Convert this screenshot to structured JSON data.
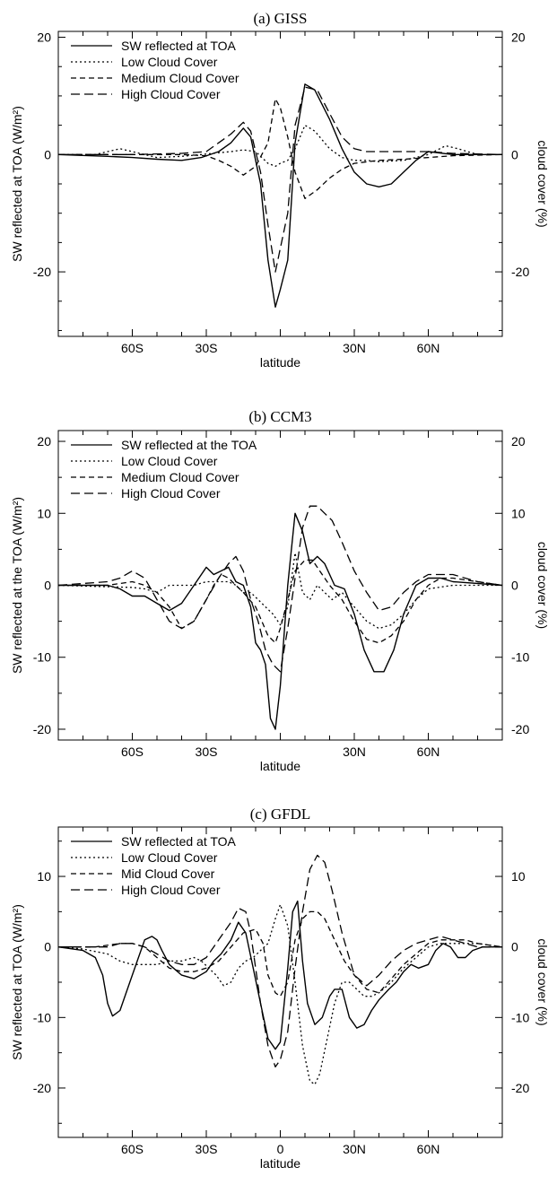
{
  "chart_data": [
    {
      "type": "line",
      "title": "(a) GISS",
      "xlabel": "latitude",
      "ylabel": "SW reflected at TOA (W/m²)",
      "y2label": "cloud cover (%)",
      "x_ticks": [
        -60,
        -30,
        0,
        30,
        60
      ],
      "x_tick_labels": [
        "60S",
        "30S",
        "",
        "30N",
        "60N"
      ],
      "y_ticks": [
        20,
        0,
        -20
      ],
      "y_tick_labels": [
        "20",
        "0",
        "-20"
      ],
      "y2_tick_labels": [
        "20",
        "0",
        "-20"
      ],
      "xlim": [
        -90,
        90
      ],
      "ylim": [
        -31,
        21
      ],
      "legend_position": "top-left",
      "series": [
        {
          "name": "SW reflected at TOA",
          "style": "solid",
          "x": [
            -90,
            -70,
            -60,
            -50,
            -40,
            -32,
            -25,
            -20,
            -15,
            -12,
            -8,
            -5,
            -2,
            0,
            3,
            6,
            10,
            14,
            20,
            25,
            30,
            35,
            40,
            45,
            50,
            55,
            60,
            70,
            90
          ],
          "y": [
            0,
            -0.3,
            -0.5,
            -0.8,
            -1,
            -0.5,
            0.5,
            2,
            4.5,
            3,
            -5,
            -18,
            -26,
            -23,
            -18,
            2,
            12,
            11,
            6,
            1,
            -3,
            -5,
            -5.5,
            -5,
            -3,
            -1,
            0.5,
            0,
            0
          ]
        },
        {
          "name": "Low Cloud Cover",
          "style": "dotted",
          "x": [
            -90,
            -75,
            -70,
            -65,
            -60,
            -50,
            -40,
            -32,
            -25,
            -20,
            -15,
            -10,
            -5,
            -2,
            0,
            3,
            6,
            10,
            14,
            20,
            25,
            30,
            35,
            40,
            50,
            60,
            67,
            72,
            80,
            90
          ],
          "y": [
            0,
            0,
            0.5,
            1,
            0.5,
            -0.5,
            -0.3,
            0,
            0.3,
            0.5,
            0.8,
            0.5,
            -1.5,
            -2,
            -1.5,
            -1,
            1,
            5,
            4,
            1,
            -0.5,
            -1,
            -1,
            -1.2,
            -1,
            0,
            1.5,
            1,
            0,
            0
          ]
        },
        {
          "name": "Medium Cloud Cover",
          "style": "dashed",
          "x": [
            -90,
            -60,
            -40,
            -30,
            -25,
            -20,
            -15,
            -10,
            -5,
            -2,
            0,
            3,
            6,
            10,
            15,
            20,
            25,
            30,
            40,
            50,
            60,
            70,
            90
          ],
          "y": [
            0,
            0,
            0,
            -0.2,
            -1,
            -2,
            -3.5,
            -2,
            2,
            9.5,
            8,
            3,
            -3,
            -7.5,
            -6,
            -4,
            -2.5,
            -1.5,
            -1,
            -0.8,
            -0.5,
            -0.2,
            0
          ]
        },
        {
          "name": "High Cloud Cover",
          "style": "longdash",
          "x": [
            -90,
            -60,
            -40,
            -30,
            -25,
            -20,
            -15,
            -12,
            -8,
            -5,
            -2,
            0,
            3,
            6,
            10,
            15,
            20,
            25,
            30,
            35,
            40,
            50,
            60,
            70,
            90
          ],
          "y": [
            0,
            0,
            0.2,
            0.5,
            2,
            3.5,
            5.5,
            4,
            -3,
            -12,
            -20,
            -16,
            -10,
            5,
            11.5,
            11,
            7,
            3,
            1,
            0.5,
            0.5,
            0.5,
            0.5,
            0.2,
            0
          ]
        }
      ]
    },
    {
      "type": "line",
      "title": "(b) CCM3",
      "xlabel": "latitude",
      "ylabel": "SW reflected at the TOA (W/m²)",
      "y2label": "cloud cover (%)",
      "x_ticks": [
        -60,
        -30,
        0,
        30,
        60
      ],
      "x_tick_labels": [
        "60S",
        "30S",
        "",
        "30N",
        "60N"
      ],
      "y_ticks": [
        20,
        10,
        0,
        -10,
        -20
      ],
      "y_tick_labels": [
        "20",
        "10",
        "0",
        "-10",
        "-20"
      ],
      "y2_tick_labels": [
        "20",
        "10",
        "0",
        "-10",
        "-20"
      ],
      "xlim": [
        -90,
        90
      ],
      "ylim": [
        -21.5,
        21.5
      ],
      "legend_position": "top-left",
      "series": [
        {
          "name": "SW reflected at the TOA",
          "style": "solid",
          "x": [
            -90,
            -70,
            -65,
            -60,
            -55,
            -50,
            -45,
            -40,
            -35,
            -30,
            -27,
            -24,
            -21,
            -18,
            -15,
            -12,
            -10,
            -8,
            -6,
            -4,
            -2,
            0,
            3,
            6,
            9,
            12,
            15,
            18,
            22,
            26,
            30,
            34,
            38,
            42,
            46,
            50,
            55,
            60,
            65,
            70,
            90
          ],
          "y": [
            0,
            0,
            -0.5,
            -1.5,
            -1.5,
            -2.5,
            -3.5,
            -2.5,
            0,
            2.5,
            1.5,
            2,
            2.5,
            0.5,
            0,
            -3,
            -8,
            -9,
            -11,
            -18.5,
            -20,
            -14,
            0,
            10,
            7.5,
            3,
            4,
            3,
            0,
            -0.5,
            -4,
            -9,
            -12,
            -12,
            -9,
            -4,
            0,
            1,
            1,
            0.5,
            0
          ]
        },
        {
          "name": "Low Cloud Cover",
          "style": "dotted",
          "x": [
            -90,
            -60,
            -55,
            -50,
            -45,
            -40,
            -35,
            -30,
            -27,
            -24,
            -21,
            -18,
            -15,
            -12,
            -9,
            -6,
            -3,
            0,
            3,
            6,
            9,
            12,
            15,
            18,
            21,
            25,
            30,
            35,
            40,
            45,
            50,
            55,
            60,
            70,
            80,
            90
          ],
          "y": [
            0,
            -0.3,
            -0.5,
            -1,
            0,
            0,
            0,
            0.5,
            0.5,
            0.5,
            0.5,
            0,
            -1,
            -1,
            -2,
            -3,
            -4,
            -5.5,
            -3,
            4.5,
            -1,
            -2,
            0,
            -1,
            -2,
            -1,
            -3,
            -5,
            -6,
            -5.5,
            -4,
            -2,
            -0.5,
            0,
            0,
            0
          ]
        },
        {
          "name": "Medium Cloud Cover",
          "style": "dashed",
          "x": [
            -90,
            -70,
            -60,
            -55,
            -50,
            -45,
            -40,
            -35,
            -30,
            -27,
            -24,
            -21,
            -18,
            -15,
            -10,
            -5,
            -2,
            0,
            3,
            6,
            10,
            13,
            16,
            20,
            25,
            30,
            35,
            40,
            45,
            50,
            55,
            60,
            65,
            70,
            80,
            90
          ],
          "y": [
            0,
            0,
            0.5,
            0,
            -1,
            -3,
            -6,
            -5,
            -2,
            0,
            1.5,
            1,
            0,
            -1,
            -3,
            -7,
            -8,
            -6,
            -2,
            2,
            3.5,
            3.5,
            2,
            0,
            -2,
            -5,
            -7.5,
            -8,
            -7,
            -5,
            -2,
            0,
            1,
            1,
            0.5,
            0
          ]
        },
        {
          "name": "High Cloud Cover",
          "style": "longdash",
          "x": [
            -90,
            -70,
            -65,
            -60,
            -55,
            -50,
            -45,
            -40,
            -35,
            -30,
            -25,
            -21,
            -18,
            -15,
            -12,
            -9,
            -6,
            -3,
            0,
            3,
            6,
            9,
            12,
            15,
            18,
            21,
            25,
            30,
            35,
            40,
            45,
            50,
            55,
            60,
            65,
            70,
            80,
            90
          ],
          "y": [
            0,
            0.5,
            1,
            2,
            1,
            -2,
            -5,
            -6,
            -5,
            -2,
            1,
            3,
            4,
            2,
            -2,
            -5,
            -9,
            -11,
            -12,
            -6,
            1,
            8,
            11,
            11,
            10,
            9,
            6,
            2,
            -1,
            -3.5,
            -3,
            -1,
            0.5,
            1.5,
            1.5,
            1.5,
            0.5,
            0
          ]
        }
      ]
    },
    {
      "type": "line",
      "title": "(c) GFDL",
      "xlabel": "latitude",
      "ylabel": "SW reflected at TOA (W/m²)",
      "y2label": "cloud cover (%)",
      "x_ticks": [
        -60,
        -30,
        0,
        30,
        60
      ],
      "x_tick_labels": [
        "60S",
        "30S",
        "0",
        "30N",
        "60N"
      ],
      "y_ticks": [
        10,
        0,
        -10,
        -20
      ],
      "y_tick_labels": [
        "10",
        "0",
        "-10",
        "-20"
      ],
      "y2_tick_labels": [
        "10",
        "0",
        "-10",
        "-20"
      ],
      "xlim": [
        -90,
        90
      ],
      "ylim": [
        -27,
        17
      ],
      "legend_position": "top-left",
      "series": [
        {
          "name": "SW reflected at TOA",
          "style": "solid",
          "x": [
            -90,
            -80,
            -75,
            -72,
            -70,
            -68,
            -65,
            -62,
            -58,
            -55,
            -52,
            -50,
            -48,
            -45,
            -40,
            -35,
            -30,
            -27,
            -24,
            -20,
            -17,
            -14,
            -11,
            -8,
            -5,
            -2,
            0,
            3,
            5,
            7,
            9,
            11,
            14,
            17,
            20,
            22,
            25,
            28,
            31,
            34,
            37,
            40,
            44,
            47,
            50,
            53,
            56,
            60,
            63,
            66,
            69,
            72,
            75,
            78,
            82,
            90
          ],
          "y": [
            0,
            -0.5,
            -1.5,
            -4,
            -8,
            -9.8,
            -9,
            -6,
            -2,
            1,
            1.5,
            1,
            -0.5,
            -2.5,
            -4,
            -4.5,
            -3.5,
            -2,
            -1,
            1,
            3.5,
            2,
            -3,
            -8,
            -13,
            -14.5,
            -13.5,
            -3,
            5,
            6.5,
            -2,
            -8,
            -11,
            -10,
            -7,
            -6,
            -6,
            -10,
            -11.5,
            -11,
            -9,
            -7.5,
            -6,
            -5,
            -3.5,
            -2.5,
            -3,
            -2.5,
            -0.5,
            0.5,
            0,
            -1.5,
            -1.5,
            -0.5,
            0,
            0
          ]
        },
        {
          "name": "Low Cloud Cover",
          "style": "dotted",
          "x": [
            -90,
            -80,
            -70,
            -65,
            -60,
            -55,
            -50,
            -45,
            -40,
            -35,
            -32,
            -29,
            -26,
            -23,
            -20,
            -17,
            -14,
            -11,
            -8,
            -5,
            -2,
            0,
            3,
            6,
            9,
            12,
            14,
            16,
            19,
            22,
            25,
            28,
            31,
            34,
            37,
            40,
            45,
            50,
            55,
            60,
            65,
            70,
            80,
            90
          ],
          "y": [
            0,
            -0.3,
            -1,
            -2,
            -2.5,
            -2.5,
            -2.5,
            -2,
            -2,
            -1.5,
            -2,
            -3,
            -4,
            -5.5,
            -5,
            -3,
            -2,
            -1.5,
            -0.5,
            0.5,
            4,
            6,
            3,
            -5,
            -14,
            -19,
            -19.5,
            -18,
            -13,
            -8,
            -5,
            -5,
            -6,
            -7,
            -7,
            -6.5,
            -5,
            -3,
            -1.5,
            0,
            0.5,
            0.5,
            0.5,
            0
          ]
        },
        {
          "name": "Mid Cloud Cover",
          "style": "dashed",
          "x": [
            -90,
            -75,
            -65,
            -60,
            -55,
            -50,
            -45,
            -40,
            -35,
            -30,
            -25,
            -20,
            -15,
            -10,
            -7,
            -5,
            -2,
            0,
            3,
            6,
            9,
            12,
            15,
            18,
            22,
            26,
            30,
            35,
            40,
            45,
            50,
            55,
            60,
            65,
            70,
            75,
            80,
            90
          ],
          "y": [
            0,
            0,
            0.5,
            0.5,
            0,
            -1.5,
            -3,
            -3.5,
            -3.5,
            -3,
            -2,
            0,
            2,
            2.5,
            0.5,
            -4,
            -6.5,
            -7,
            -5,
            1,
            4,
            5,
            5,
            4,
            1,
            -2,
            -4,
            -6,
            -6.5,
            -4.5,
            -2.5,
            -1,
            0.5,
            1,
            1,
            1,
            0.5,
            0
          ]
        },
        {
          "name": "High Cloud Cover",
          "style": "longdash",
          "x": [
            -90,
            -80,
            -75,
            -70,
            -65,
            -60,
            -55,
            -50,
            -45,
            -40,
            -35,
            -30,
            -25,
            -20,
            -17,
            -14,
            -12,
            -10,
            -8,
            -5,
            -2,
            0,
            3,
            6,
            9,
            12,
            15,
            18,
            21,
            25,
            30,
            35,
            40,
            45,
            50,
            55,
            60,
            65,
            70,
            75,
            80,
            90
          ],
          "y": [
            0,
            0,
            0,
            0,
            0.5,
            0.5,
            0,
            -1,
            -2,
            -2.5,
            -2.5,
            -1.5,
            1,
            3.5,
            5.5,
            5,
            2,
            -3,
            -8,
            -14,
            -17,
            -16,
            -12,
            -3,
            5,
            11,
            13,
            12,
            8,
            2,
            -4,
            -5.5,
            -4,
            -2,
            -0.5,
            0.5,
            1,
            1.5,
            1,
            0.5,
            0,
            0
          ]
        }
      ]
    }
  ]
}
